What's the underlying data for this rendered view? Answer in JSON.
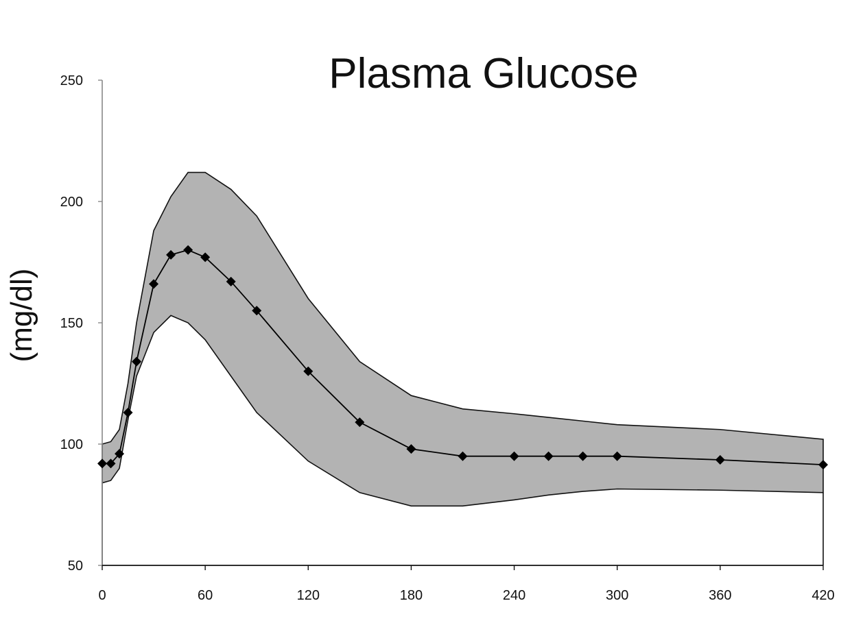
{
  "chart_data": {
    "type": "line",
    "title": "Plasma Glucose",
    "xlabel": "",
    "ylabel": "(mg/dl)",
    "xlim": [
      0,
      420
    ],
    "ylim": [
      50,
      250
    ],
    "x_ticks": [
      0,
      60,
      120,
      180,
      240,
      300,
      360,
      420
    ],
    "x_tick_labels": [
      "0",
      "60",
      "120",
      "180",
      "240",
      "300",
      "360",
      "420"
    ],
    "y_ticks": [
      50,
      100,
      150,
      200,
      250
    ],
    "y_tick_labels": [
      "50",
      "100",
      "150",
      "200",
      "250"
    ],
    "grid": false,
    "colors": {
      "band_fill": "#b3b3b3",
      "line": "#000000",
      "marker": "#000000"
    },
    "series": [
      {
        "x": [
          0,
          5,
          10,
          15,
          20,
          30,
          40,
          50,
          60,
          75,
          90,
          120,
          150,
          180,
          210,
          240,
          260,
          280,
          300,
          360,
          420
        ],
        "values": [
          92,
          92,
          96,
          113,
          134,
          166,
          178,
          180,
          177,
          167,
          155,
          130,
          109,
          98,
          95,
          95,
          95,
          95,
          95,
          93.5,
          91.5
        ],
        "marker": "diamond"
      }
    ],
    "band": {
      "x": [
        0,
        5,
        10,
        15,
        20,
        30,
        40,
        50,
        60,
        75,
        90,
        120,
        150,
        180,
        210,
        240,
        260,
        280,
        300,
        360,
        420
      ],
      "upper": [
        100,
        101,
        106,
        125,
        150,
        188,
        202,
        212,
        212,
        205,
        194,
        160,
        134,
        120,
        114.5,
        112.5,
        111,
        109.5,
        108,
        106,
        102
      ],
      "lower": [
        84,
        85,
        90,
        110,
        128,
        146,
        153,
        150,
        143,
        128,
        113,
        93,
        80,
        74.5,
        74.5,
        77,
        79,
        80.5,
        81.5,
        81,
        80
      ]
    }
  }
}
